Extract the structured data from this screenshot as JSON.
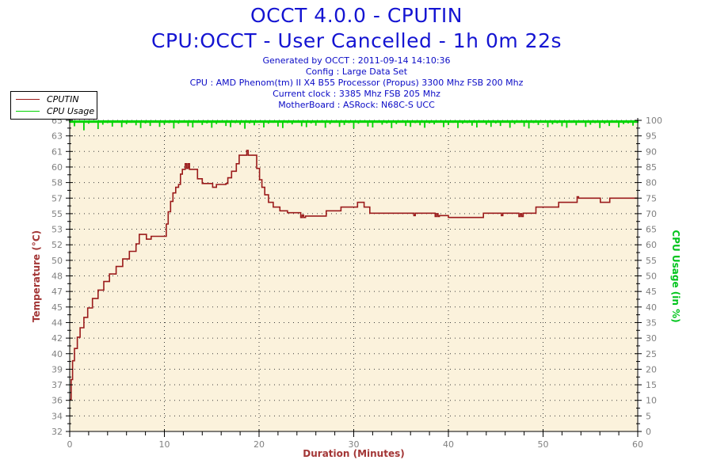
{
  "titles": {
    "line1": "OCCT 4.0.0 - CPUTIN",
    "line2": "CPU:OCCT - User Cancelled - 1h 0m 22s"
  },
  "header": {
    "lines": [
      "Generated by OCCT : 2011-09-14 14:10:36",
      "Config : Large Data Set",
      "CPU : AMD Phenom(tm) II X4 B55 Processor (Propus) 3300 Mhz FSB 200 Mhz",
      "Current clock : 3385 Mhz FSB 205 Mhz",
      "MotherBoard : ASRock: N68C-S UCC"
    ]
  },
  "legend": {
    "items": [
      {
        "label": "CPUTIN",
        "color": "#9b1b1b"
      },
      {
        "label": "CPU Usage",
        "color": "#00d400"
      }
    ]
  },
  "colors": {
    "title_blue": "#1414d2",
    "header_blue": "#0b0bc6",
    "temperature_red": "#9b1b1b",
    "usage_green": "#00d400",
    "axis_title_red": "#a33636",
    "axis_title_green": "#00c41c",
    "tick_label_gray": "#808080",
    "plot_background": "#fbf2dc",
    "grid_dot": "#3c3c3c"
  },
  "chart_data": {
    "type": "line",
    "title": "OCCT 4.0.0 - CPUTIN",
    "subtitle": "CPU:OCCT - User Cancelled - 1h 0m 22s",
    "xlabel": "Duration (Minutes)",
    "ylabel_left": "Temperature (°C)",
    "ylabel_right": "CPU Usage (in %)",
    "xlim": [
      0,
      60
    ],
    "x_major_ticks": [
      0,
      10,
      20,
      30,
      40,
      50,
      60
    ],
    "x_minor_step": 2,
    "x_grid": [
      10,
      20,
      30,
      40,
      50
    ],
    "ylim_left": [
      32,
      65
    ],
    "ylim_right": [
      0,
      100
    ],
    "left_tick_labels": [
      "65",
      "63",
      "61",
      "60",
      "58",
      "57",
      "55",
      "53",
      "52",
      "50",
      "48",
      "47",
      "45",
      "44",
      "42",
      "40",
      "39",
      "37",
      "36",
      "34",
      "32"
    ],
    "right_tick_labels": [
      "100",
      "95",
      "90",
      "85",
      "80",
      "75",
      "70",
      "65",
      "60",
      "55",
      "50",
      "45",
      "40",
      "35",
      "30",
      "25",
      "20",
      "15",
      "10",
      "5",
      "0"
    ],
    "grid": "dotted",
    "plot_bg": "#fbf2dc",
    "series": [
      {
        "name": "CPUTIN",
        "axis": "left",
        "color": "#9b1b1b",
        "type": "step",
        "points": [
          [
            0,
            35.4
          ],
          [
            0.15,
            37.5
          ],
          [
            0.3,
            39.5
          ],
          [
            0.5,
            40.8
          ],
          [
            0.8,
            42
          ],
          [
            1.1,
            43
          ],
          [
            1.5,
            44.1
          ],
          [
            1.9,
            45.1
          ],
          [
            2.4,
            46.1
          ],
          [
            3,
            47
          ],
          [
            3.6,
            47.9
          ],
          [
            4.2,
            48.7
          ],
          [
            4.9,
            49.5
          ],
          [
            5.6,
            50.3
          ],
          [
            6.3,
            51.1
          ],
          [
            7,
            51.9
          ],
          [
            7.35,
            52.9
          ],
          [
            7.9,
            52.9
          ],
          [
            8.1,
            52.4
          ],
          [
            8.6,
            52.7
          ],
          [
            10.05,
            52.7
          ],
          [
            10.2,
            54
          ],
          [
            10.4,
            55.3
          ],
          [
            10.65,
            56.4
          ],
          [
            10.9,
            57.3
          ],
          [
            11.2,
            57.9
          ],
          [
            11.5,
            58.2
          ],
          [
            11.7,
            59.3
          ],
          [
            11.9,
            59.8
          ],
          [
            12.2,
            60.4
          ],
          [
            12.35,
            59.9
          ],
          [
            12.5,
            60.4
          ],
          [
            12.65,
            59.8
          ],
          [
            13.4,
            59.8
          ],
          [
            13.5,
            58.8
          ],
          [
            14,
            58.3
          ],
          [
            15,
            58.3
          ],
          [
            15.1,
            57.9
          ],
          [
            15.5,
            58.2
          ],
          [
            16.5,
            58.3
          ],
          [
            16.7,
            58.9
          ],
          [
            17.1,
            59.6
          ],
          [
            17.6,
            60.4
          ],
          [
            17.9,
            61.3
          ],
          [
            18.6,
            61.3
          ],
          [
            18.7,
            61.8
          ],
          [
            18.85,
            61.3
          ],
          [
            19.6,
            61.3
          ],
          [
            19.75,
            59.9
          ],
          [
            20.05,
            58.7
          ],
          [
            20.3,
            57.9
          ],
          [
            20.6,
            57.1
          ],
          [
            21,
            56.3
          ],
          [
            21.5,
            55.8
          ],
          [
            22.2,
            55.4
          ],
          [
            23,
            55.2
          ],
          [
            24.3,
            55.2
          ],
          [
            24.4,
            54.7
          ],
          [
            24.55,
            54.95
          ],
          [
            24.7,
            54.7
          ],
          [
            24.9,
            54.85
          ],
          [
            26.9,
            54.85
          ],
          [
            27.1,
            55.4
          ],
          [
            28.4,
            55.4
          ],
          [
            28.65,
            55.8
          ],
          [
            30.2,
            55.8
          ],
          [
            30.4,
            56.3
          ],
          [
            30.9,
            56.3
          ],
          [
            31.1,
            55.8
          ],
          [
            31.5,
            55.8
          ],
          [
            31.7,
            55.15
          ],
          [
            36.2,
            55.15
          ],
          [
            36.35,
            54.9
          ],
          [
            36.5,
            55.15
          ],
          [
            38.45,
            55.15
          ],
          [
            38.6,
            54.8
          ],
          [
            38.75,
            55.1
          ],
          [
            38.9,
            54.8
          ],
          [
            39.05,
            54.9
          ],
          [
            39.8,
            54.9
          ],
          [
            40,
            54.7
          ],
          [
            43.5,
            54.7
          ],
          [
            43.7,
            55.15
          ],
          [
            45.5,
            55.15
          ],
          [
            45.6,
            54.9
          ],
          [
            45.75,
            55.15
          ],
          [
            47.3,
            55.15
          ],
          [
            47.45,
            54.8
          ],
          [
            47.6,
            55.1
          ],
          [
            47.75,
            54.8
          ],
          [
            47.9,
            55.15
          ],
          [
            49.1,
            55.15
          ],
          [
            49.25,
            55.8
          ],
          [
            51.5,
            55.8
          ],
          [
            51.65,
            56.3
          ],
          [
            53.5,
            56.3
          ],
          [
            53.6,
            56.9
          ],
          [
            53.75,
            56.75
          ],
          [
            55.9,
            56.75
          ],
          [
            56.05,
            56.3
          ],
          [
            56.9,
            56.3
          ],
          [
            57.05,
            56.75
          ],
          [
            60,
            56.75
          ]
        ]
      },
      {
        "name": "CPU Usage",
        "axis": "right",
        "color": "#00d400",
        "type": "noise-band",
        "top": 100,
        "band_floor": 99.2,
        "x_step": 0.5,
        "dips": [
          99.3,
          98.1,
          99.6,
          96.8,
          98.9,
          99.4,
          97.2,
          98.6,
          99.1,
          98.0,
          99.5,
          97.8,
          98.8,
          99.2,
          98.4,
          97.5,
          99.0,
          98.2,
          99.4,
          97.9,
          98.7,
          99.1,
          97.4,
          98.9,
          99.3,
          98.1,
          97.7,
          99.2,
          98.5,
          99.0,
          97.6,
          98.8,
          99.4,
          98.2,
          97.8,
          99.1,
          98.6,
          97.3,
          99.0,
          98.4,
          99.3,
          97.7,
          98.9,
          99.2,
          98.0,
          97.5,
          99.1,
          98.7,
          99.4,
          98.1,
          97.8,
          99.0,
          98.3,
          99.5,
          97.6,
          98.8,
          99.2,
          97.9,
          98.5,
          99.1,
          97.4,
          98.9,
          99.3,
          98.0,
          97.7,
          99.2,
          98.6,
          99.0,
          97.5,
          98.8,
          99.4,
          98.2,
          97.9,
          99.1,
          98.4,
          97.6,
          99.0,
          98.7,
          99.3,
          97.8,
          98.5,
          99.2,
          97.5,
          98.9,
          99.1,
          98.3,
          97.7,
          99.4,
          98.6,
          97.9,
          99.0,
          98.2,
          99.5,
          97.6,
          98.8,
          99.2,
          98.0,
          97.4,
          99.1,
          98.5,
          99.3,
          97.8,
          98.7,
          99.0,
          98.1,
          97.6,
          99.2,
          98.4,
          99.5,
          97.9,
          98.6,
          99.1,
          97.5,
          98.9,
          98.2,
          99.3,
          97.7,
          98.8,
          99.0,
          98.3,
          99.2
        ]
      }
    ]
  }
}
